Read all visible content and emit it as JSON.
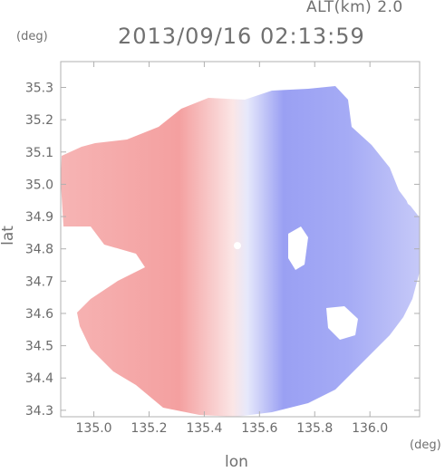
{
  "header": {
    "altitude_label": "ALT(km) 2.0",
    "datetime": "2013/09/16 02:13:59"
  },
  "axes": {
    "x_label": "lon",
    "y_label": "lat",
    "x_unit": "(deg)",
    "y_unit": "(deg)",
    "x_ticks": [
      "135.0",
      "135.2",
      "135.4",
      "135.6",
      "135.8",
      "136.0"
    ],
    "y_ticks": [
      "35.3",
      "35.2",
      "35.1",
      "35.0",
      "34.9",
      "34.8",
      "34.7",
      "34.6",
      "34.5",
      "34.4",
      "34.3"
    ]
  },
  "map": {
    "xlim": [
      134.88,
      136.18
    ],
    "ylim": [
      34.28,
      35.38
    ],
    "radar_center": [
      135.52,
      34.81
    ],
    "colors": {
      "approaching": "#8f96f2",
      "receding": "#f4a0a0",
      "neutral": "#ffffff",
      "frame": "#b0b0b0"
    }
  }
}
